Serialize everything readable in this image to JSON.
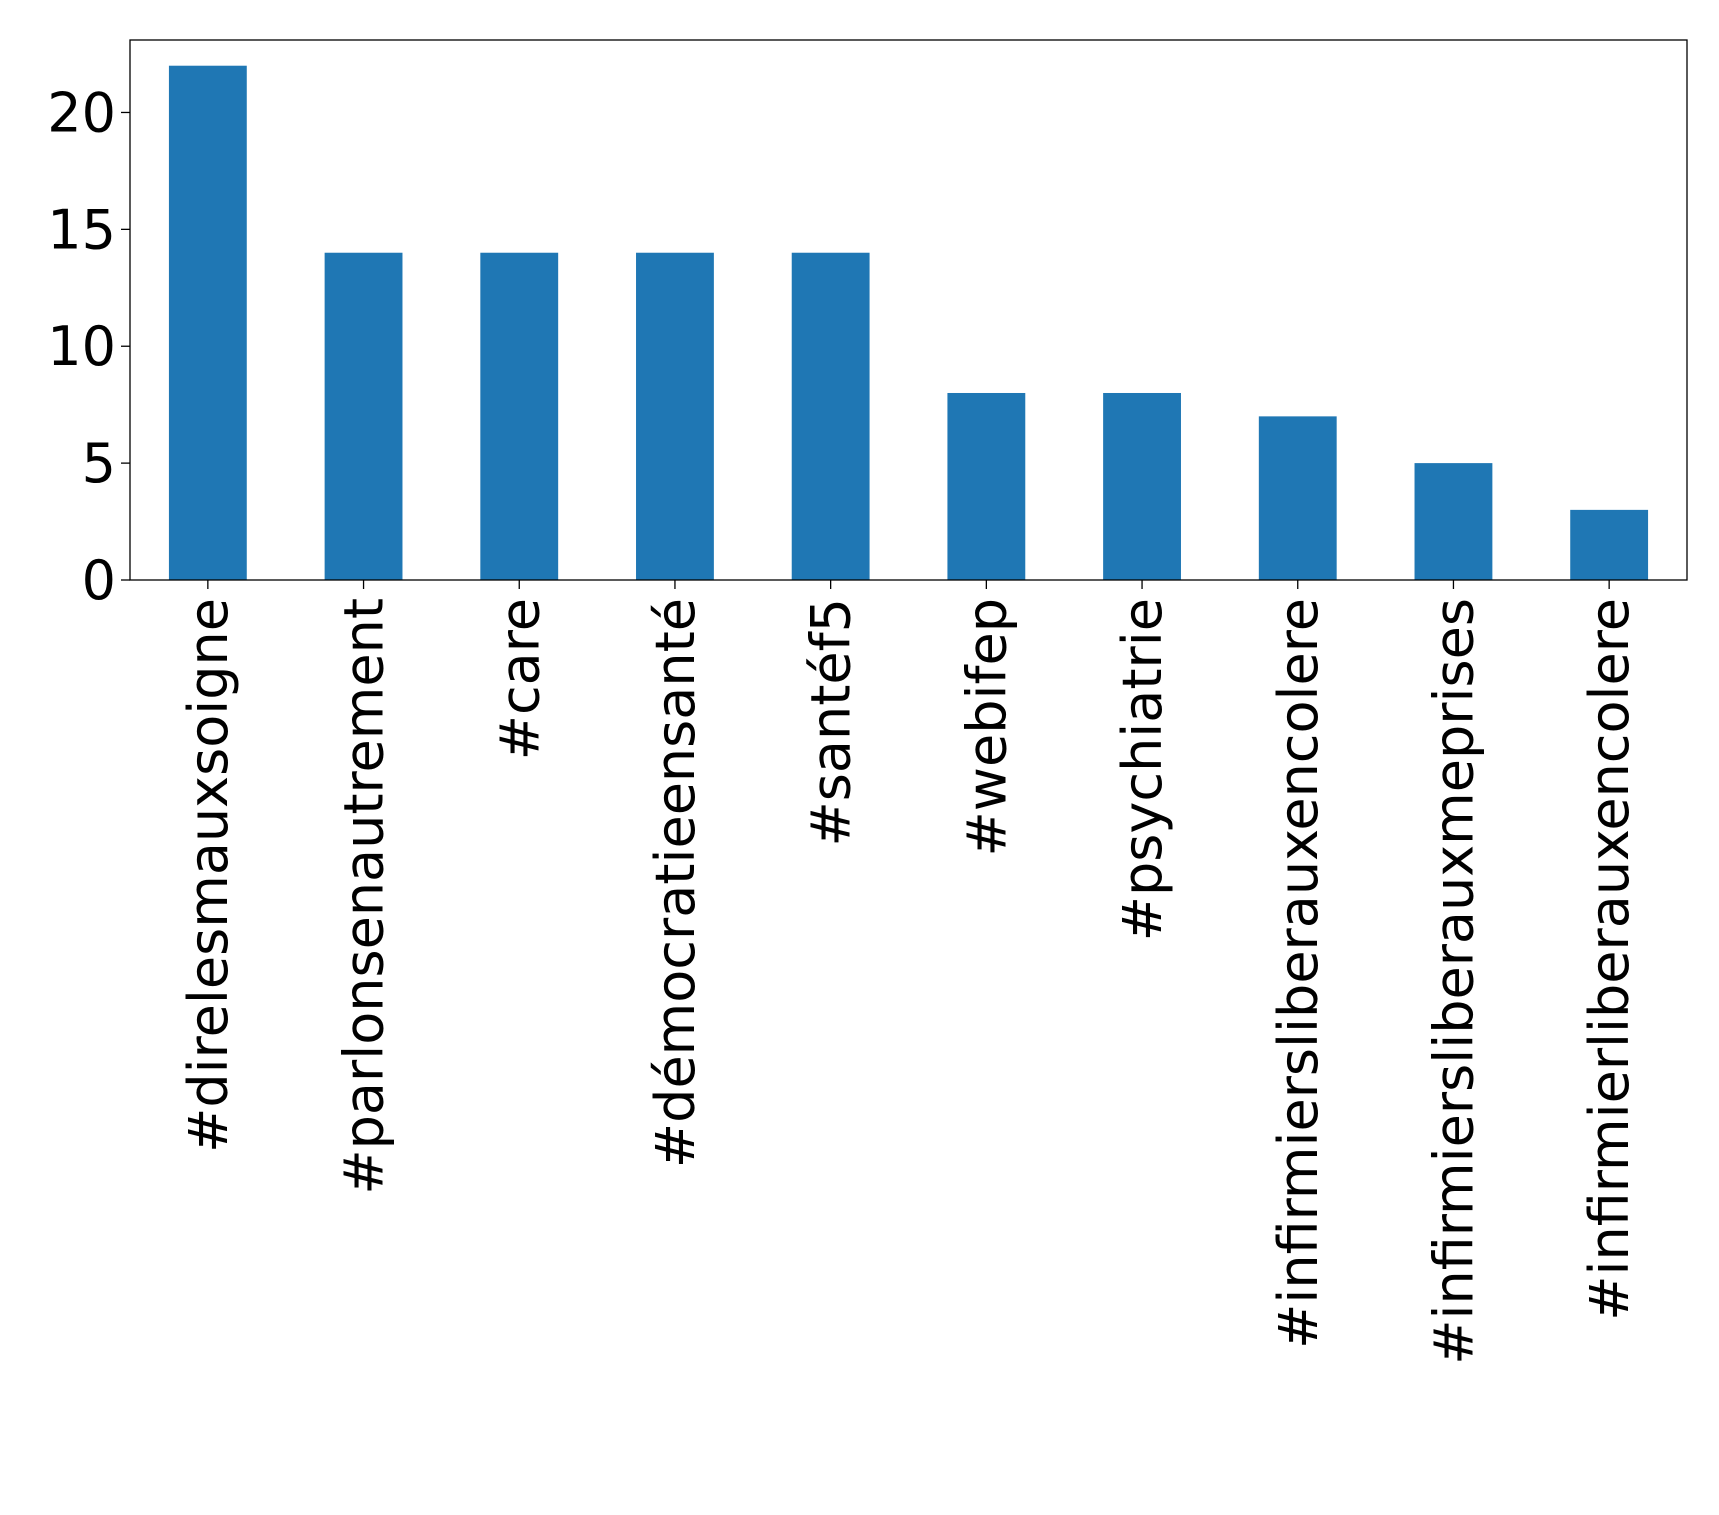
{
  "chart_data": {
    "type": "bar",
    "categories": [
      "#direlesmauxsoigne",
      "#parlonsenautrement",
      "#care",
      "#démocratieensanté",
      "#santéf5",
      "#webifep",
      "#psychiatrie",
      "#infirmiersliberauxencolere",
      "#infirmiersliberauxmeprises",
      "#infirmierliberauxencolere"
    ],
    "values": [
      22,
      14,
      14,
      14,
      14,
      8,
      8,
      7,
      5,
      3
    ],
    "yticks": [
      "0",
      "5",
      "10",
      "15",
      "20"
    ],
    "ylim": [
      0,
      23.1
    ],
    "bar_color": "#1f77b4",
    "grid": false,
    "legend": "none"
  }
}
